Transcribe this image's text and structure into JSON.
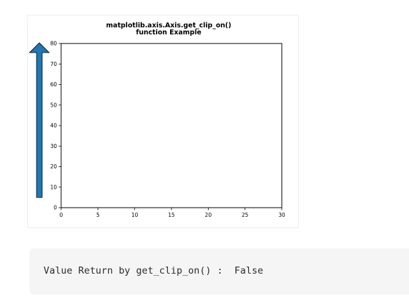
{
  "chart_data": {
    "type": "line",
    "title": "matplotlib.axis.Axis.get_clip_on()\nfunction Example",
    "xlim": [
      0,
      30
    ],
    "ylim": [
      0,
      80
    ],
    "x_ticks": [
      "0",
      "5",
      "10",
      "15",
      "20",
      "25",
      "30"
    ],
    "y_ticks": [
      "0",
      "10",
      "20",
      "30",
      "40",
      "50",
      "60",
      "70",
      "80"
    ],
    "series": [],
    "annotations": [
      {
        "type": "arrow",
        "direction": "up",
        "color": "#1f77b4",
        "from_y": 5,
        "to_y": 80
      }
    ]
  },
  "output": {
    "text": "Value Return by get_clip_on() :  False"
  }
}
